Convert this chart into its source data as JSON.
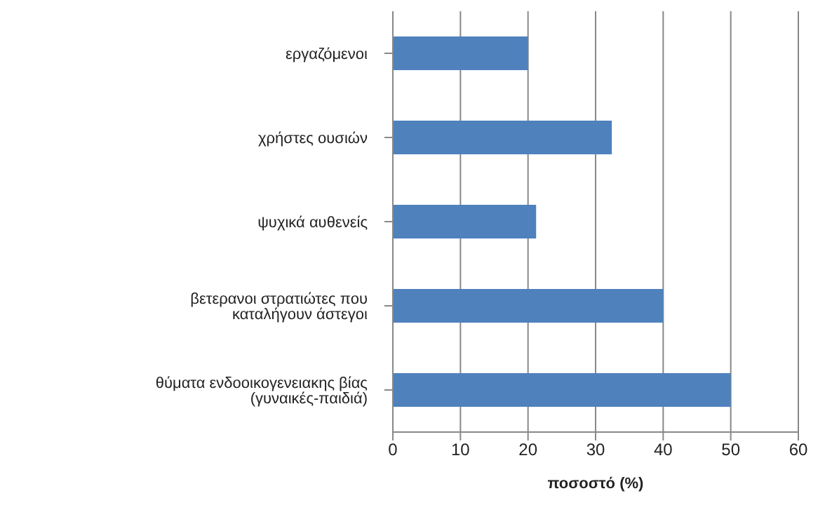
{
  "chart_data": {
    "type": "bar",
    "orientation": "horizontal",
    "xlabel": "ποσοστό (%)",
    "categories": [
      "εργαζόμενοι",
      "χρήστες ουσιών",
      "ψυχικά αυθενείς",
      "βετερανοι στρατιώτες που καταλήγουν άστεγοι",
      "θύματα ενδοοικογενειακης βίας (γυναικές-παιδιά)"
    ],
    "values": [
      20,
      32.4,
      21.2,
      40,
      50
    ],
    "color": "#4f81bd",
    "xlim": [
      0,
      60
    ],
    "xticks": [
      0,
      10,
      20,
      30,
      40,
      50,
      60
    ],
    "grid": "x"
  }
}
